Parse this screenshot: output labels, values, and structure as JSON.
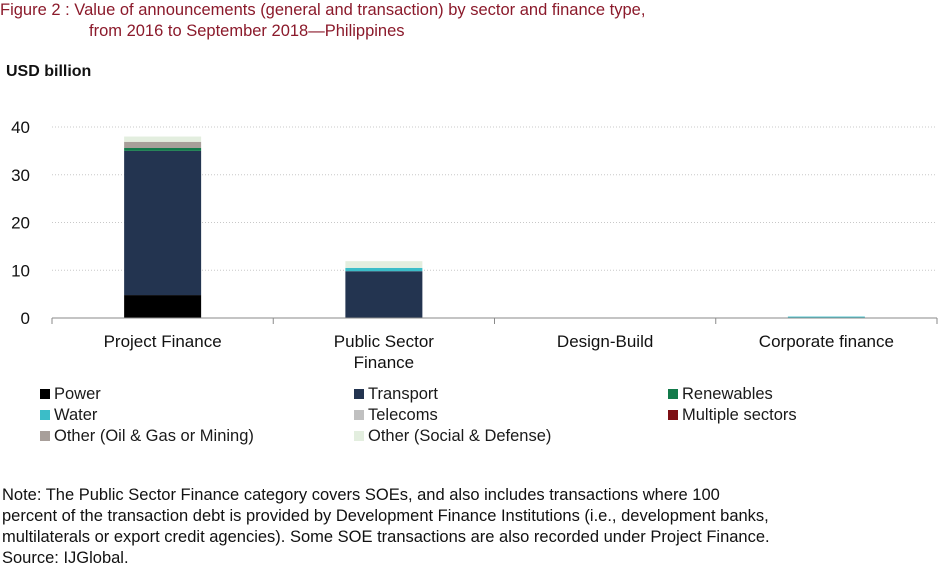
{
  "figure": {
    "title_line1": "Figure 2 : Value of announcements (general and transaction) by sector and finance type,",
    "title_line2": "from 2016 to September 2018—Philippines",
    "unit_label": "USD billion",
    "note_lines": [
      "Note: The Public Sector Finance category covers SOEs, and also includes transactions where 100",
      "percent of the transaction debt is provided by Development Finance Institutions (i.e., development banks,",
      "multilaterals or export credit agencies). Some SOE transactions are also recorded under Project Finance.",
      "Source: IJGlobal."
    ]
  },
  "chart_data": {
    "type": "bar",
    "stacked": true,
    "categories": [
      "Project Finance",
      "Public Sector Finance",
      "Design-Build",
      "Corporate finance"
    ],
    "category_label_lines": [
      [
        "Project Finance"
      ],
      [
        "Public Sector",
        "Finance"
      ],
      [
        "Design-Build"
      ],
      [
        "Corporate finance"
      ]
    ],
    "ylabel": "USD billion",
    "ylim": [
      0,
      40
    ],
    "yticks": [
      0,
      10,
      20,
      30,
      40
    ],
    "grid": true,
    "legend_position": "bottom",
    "series": [
      {
        "name": "Power",
        "color": "#000000",
        "values": [
          4.8,
          0,
          0,
          0
        ]
      },
      {
        "name": "Transport",
        "color": "#233450",
        "values": [
          30.2,
          9.8,
          0,
          0
        ]
      },
      {
        "name": "Renewables",
        "color": "#127a4a",
        "values": [
          0.6,
          0,
          0,
          0
        ]
      },
      {
        "name": "Water",
        "color": "#3bbdc8",
        "values": [
          0.0,
          0.7,
          0,
          0.3
        ]
      },
      {
        "name": "Telecoms",
        "color": "#c0c0c0",
        "values": [
          0,
          0,
          0,
          0
        ]
      },
      {
        "name": "Multiple sectors",
        "color": "#7d0f14",
        "values": [
          0,
          0,
          0,
          0
        ]
      },
      {
        "name": "Other (Oil & Gas or Mining)",
        "color": "#a89f9a",
        "values": [
          1.3,
          0,
          0,
          0
        ]
      },
      {
        "name": "Other (Social & Defense)",
        "color": "#e3eedf",
        "values": [
          1.1,
          1.4,
          0,
          0
        ]
      }
    ]
  }
}
